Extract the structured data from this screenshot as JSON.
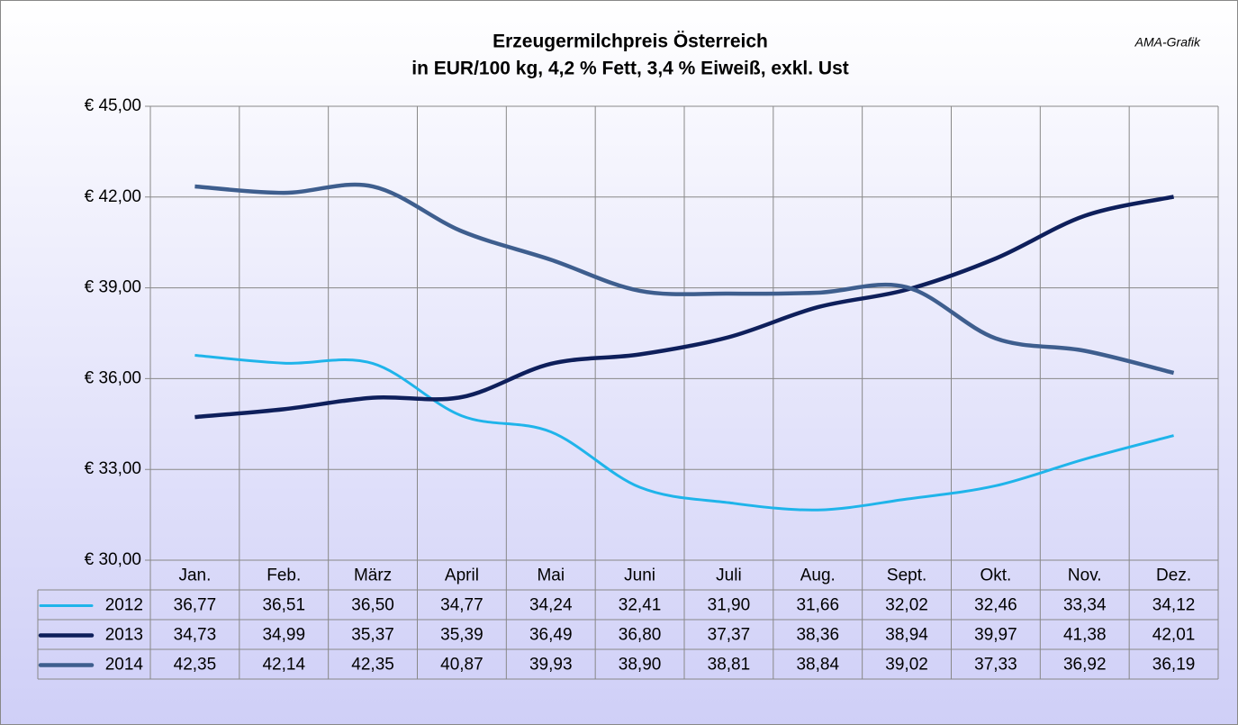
{
  "chart_data": {
    "type": "line",
    "title": "Erzeugermilchpreis Österreich",
    "subtitle": "in EUR/100 kg, 4,2 % Fett, 3,4 % Eiweiß, exkl. Ust",
    "annotation": "AMA-Grafik",
    "categories": [
      "Jan.",
      "Feb.",
      "März",
      "April",
      "Mai",
      "Juni",
      "Juli",
      "Aug.",
      "Sept.",
      "Okt.",
      "Nov.",
      "Dez."
    ],
    "series": [
      {
        "name": "2012",
        "color": "#1fb4ea",
        "values": [
          36.77,
          36.51,
          36.5,
          34.77,
          34.24,
          32.41,
          31.9,
          31.66,
          32.02,
          32.46,
          33.34,
          34.12
        ],
        "value_labels": [
          "36,77",
          "36,51",
          "36,50",
          "34,77",
          "34,24",
          "32,41",
          "31,90",
          "31,66",
          "32,02",
          "32,46",
          "33,34",
          "34,12"
        ]
      },
      {
        "name": "2013",
        "color": "#0e1f5b",
        "values": [
          34.73,
          34.99,
          35.37,
          35.39,
          36.49,
          36.8,
          37.37,
          38.36,
          38.94,
          39.97,
          41.38,
          42.01
        ],
        "value_labels": [
          "34,73",
          "34,99",
          "35,37",
          "35,39",
          "36,49",
          "36,80",
          "37,37",
          "38,36",
          "38,94",
          "39,97",
          "41,38",
          "42,01"
        ]
      },
      {
        "name": "2014",
        "color": "#3e5e8e",
        "values": [
          42.35,
          42.14,
          42.35,
          40.87,
          39.93,
          38.9,
          38.81,
          38.84,
          39.02,
          37.33,
          36.92,
          36.19
        ],
        "value_labels": [
          "42,35",
          "42,14",
          "42,35",
          "40,87",
          "39,93",
          "38,90",
          "38,81",
          "38,84",
          "39,02",
          "37,33",
          "36,92",
          "36,19"
        ]
      }
    ],
    "ylim": [
      30,
      45
    ],
    "yticks": [
      {
        "value": 30,
        "label": "€ 30,00"
      },
      {
        "value": 33,
        "label": "€ 33,00"
      },
      {
        "value": 36,
        "label": "€ 36,00"
      },
      {
        "value": 39,
        "label": "€ 39,00"
      },
      {
        "value": 42,
        "label": "€ 42,00"
      },
      {
        "value": 45,
        "label": "€ 45,00"
      }
    ],
    "grid": true,
    "legend": "table"
  }
}
